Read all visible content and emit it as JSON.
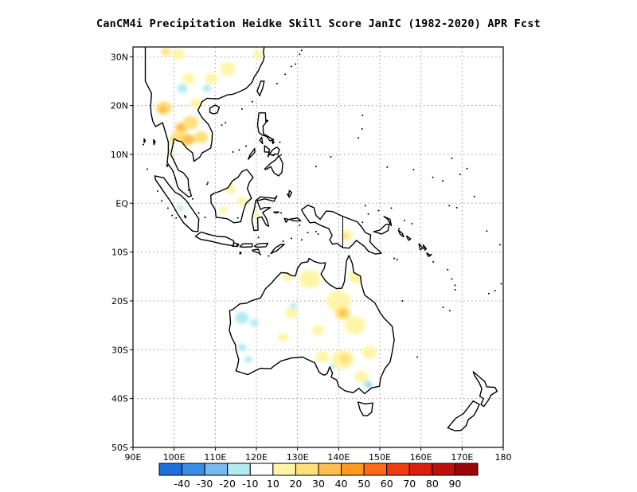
{
  "title": "CanCM4i  Precipitation Heidke Skill Score JanIC (1982-2020) APR Fcst",
  "map": {
    "lon_range": [
      90,
      180
    ],
    "lat_range": [
      -50,
      32
    ],
    "grid": "dotted",
    "x_ticks": [
      {
        "value": 90,
        "label": "90E"
      },
      {
        "value": 100,
        "label": "100E"
      },
      {
        "value": 110,
        "label": "110E"
      },
      {
        "value": 120,
        "label": "120E"
      },
      {
        "value": 130,
        "label": "130E"
      },
      {
        "value": 140,
        "label": "140E"
      },
      {
        "value": 150,
        "label": "150E"
      },
      {
        "value": 160,
        "label": "160E"
      },
      {
        "value": 170,
        "label": "170E"
      },
      {
        "value": 180,
        "label": "180"
      }
    ],
    "y_ticks": [
      {
        "value": 30,
        "label": "30N"
      },
      {
        "value": 20,
        "label": "20N"
      },
      {
        "value": 10,
        "label": "10N"
      },
      {
        "value": 0,
        "label": "EQ"
      },
      {
        "value": -10,
        "label": "10S"
      },
      {
        "value": -20,
        "label": "20S"
      },
      {
        "value": -30,
        "label": "30S"
      },
      {
        "value": -40,
        "label": "40S"
      },
      {
        "value": -50,
        "label": "50S"
      }
    ]
  },
  "colorbar": {
    "colors": [
      "#1e6fdc",
      "#3a8de6",
      "#78b9f0",
      "#b4ebf0",
      "#ffffff",
      "#fff5a8",
      "#ffe07a",
      "#ffbe50",
      "#ff9a1e",
      "#ff6a14",
      "#f03a10",
      "#dc1e10",
      "#be0f0c",
      "#9a0606"
    ],
    "labels": [
      "-40",
      "-30",
      "-20",
      "-10",
      "10",
      "20",
      "30",
      "40",
      "50",
      "60",
      "70",
      "80",
      "90"
    ]
  },
  "shading": [
    {
      "level": 40,
      "color": "#ffbe50",
      "lon": 101.7,
      "lat": 15.5,
      "r": 1.3
    },
    {
      "level": 30,
      "color": "#ffe07a",
      "lon": 97.5,
      "lat": 19.5,
      "r": 1.8
    },
    {
      "level": 40,
      "color": "#ffbe50",
      "lon": 97.2,
      "lat": 19.2,
      "r": 1.0
    },
    {
      "level": 30,
      "color": "#ffe07a",
      "lon": 101.5,
      "lat": 13.0,
      "r": 2.4
    },
    {
      "level": 40,
      "color": "#ffbe50",
      "lon": 103.5,
      "lat": 13.0,
      "r": 1.4
    },
    {
      "level": 30,
      "color": "#ffe07a",
      "lon": 104.0,
      "lat": 16.5,
      "r": 1.8
    },
    {
      "level": 30,
      "color": "#ffe07a",
      "lon": 106.5,
      "lat": 13.5,
      "r": 1.6
    },
    {
      "level": 20,
      "color": "#fff5a8",
      "lon": 99.5,
      "lat": 10.5,
      "r": 1.2
    },
    {
      "level": 20,
      "color": "#fff5a8",
      "lon": 105.5,
      "lat": 20.5,
      "r": 1.4
    },
    {
      "level": 20,
      "color": "#fff5a8",
      "lon": 103.5,
      "lat": 25.5,
      "r": 1.5
    },
    {
      "level": 20,
      "color": "#fff5a8",
      "lon": 109.0,
      "lat": 25.5,
      "r": 1.5
    },
    {
      "level": 20,
      "color": "#fff5a8",
      "lon": 113.0,
      "lat": 27.5,
      "r": 1.8
    },
    {
      "level": 20,
      "color": "#fff5a8",
      "lon": 101.0,
      "lat": 30.5,
      "r": 1.5
    },
    {
      "level": 30,
      "color": "#ffe07a",
      "lon": 98.0,
      "lat": 31.0,
      "r": 1.0
    },
    {
      "level": 20,
      "color": "#fff5a8",
      "lon": 120.5,
      "lat": 30.5,
      "r": 1.2
    },
    {
      "level": 20,
      "color": "#fff5a8",
      "lon": 124.0,
      "lat": 17.5,
      "r": 1.0
    },
    {
      "level": -10,
      "color": "#b4ebf0",
      "lon": 102.0,
      "lat": 23.5,
      "r": 1.2
    },
    {
      "level": -10,
      "color": "#b4ebf0",
      "lon": 108.0,
      "lat": 23.5,
      "r": 1.0
    },
    {
      "level": 20,
      "color": "#fff5a8",
      "lon": 113.5,
      "lat": 3.0,
      "r": 1.4
    },
    {
      "level": 20,
      "color": "#fff5a8",
      "lon": 116.5,
      "lat": 0.5,
      "r": 1.2
    },
    {
      "level": 20,
      "color": "#fff5a8",
      "lon": 112.0,
      "lat": -1.5,
      "r": 1.0
    },
    {
      "level": 20,
      "color": "#fff5a8",
      "lon": 120.0,
      "lat": -2.5,
      "r": 0.9
    },
    {
      "level": 20,
      "color": "#fff5a8",
      "lon": 142.0,
      "lat": -6.5,
      "r": 1.4
    },
    {
      "level": 30,
      "color": "#ffe07a",
      "lon": 141.5,
      "lat": -6.8,
      "r": 0.8
    },
    {
      "level": -10,
      "color": "#b4ebf0",
      "lon": 101.5,
      "lat": -1.0,
      "r": 0.8
    },
    {
      "level": 20,
      "color": "#fff5a8",
      "lon": 133.0,
      "lat": -15.5,
      "r": 2.5
    },
    {
      "level": 20,
      "color": "#fff5a8",
      "lon": 127.5,
      "lat": -15.0,
      "r": 1.2
    },
    {
      "level": 20,
      "color": "#fff5a8",
      "lon": 144.5,
      "lat": -15.0,
      "r": 2.0
    },
    {
      "level": 20,
      "color": "#fff5a8",
      "lon": 140.0,
      "lat": -20.0,
      "r": 2.8
    },
    {
      "level": 30,
      "color": "#ffe07a",
      "lon": 141.0,
      "lat": -22.5,
      "r": 1.8
    },
    {
      "level": 40,
      "color": "#ffbe50",
      "lon": 141.0,
      "lat": -22.5,
      "r": 0.9
    },
    {
      "level": 20,
      "color": "#fff5a8",
      "lon": 144.0,
      "lat": -25.0,
      "r": 2.4
    },
    {
      "level": 20,
      "color": "#fff5a8",
      "lon": 128.5,
      "lat": -22.5,
      "r": 1.5
    },
    {
      "level": 20,
      "color": "#fff5a8",
      "lon": 126.5,
      "lat": -27.5,
      "r": 1.2
    },
    {
      "level": 20,
      "color": "#fff5a8",
      "lon": 135.0,
      "lat": -26.0,
      "r": 1.4
    },
    {
      "level": 20,
      "color": "#fff5a8",
      "lon": 136.0,
      "lat": -31.5,
      "r": 1.6
    },
    {
      "level": 20,
      "color": "#fff5a8",
      "lon": 141.0,
      "lat": -32.0,
      "r": 2.6
    },
    {
      "level": 30,
      "color": "#ffe07a",
      "lon": 141.5,
      "lat": -31.8,
      "r": 1.3
    },
    {
      "level": 20,
      "color": "#fff5a8",
      "lon": 147.5,
      "lat": -30.5,
      "r": 1.8
    },
    {
      "level": 20,
      "color": "#fff5a8",
      "lon": 145.5,
      "lat": -35.5,
      "r": 1.6
    },
    {
      "level": 20,
      "color": "#fff5a8",
      "lon": 129.5,
      "lat": -32.5,
      "r": 1.0
    },
    {
      "level": -10,
      "color": "#b4ebf0",
      "lon": 116.5,
      "lat": -23.5,
      "r": 1.6
    },
    {
      "level": -10,
      "color": "#b4ebf0",
      "lon": 119.5,
      "lat": -24.5,
      "r": 1.0
    },
    {
      "level": -10,
      "color": "#b4ebf0",
      "lon": 116.5,
      "lat": -29.5,
      "r": 1.0
    },
    {
      "level": -10,
      "color": "#b4ebf0",
      "lon": 118.0,
      "lat": -32.0,
      "r": 0.9
    },
    {
      "level": -10,
      "color": "#b4ebf0",
      "lon": 126.0,
      "lat": -33.0,
      "r": 0.8
    },
    {
      "level": -10,
      "color": "#b4ebf0",
      "lon": 129.0,
      "lat": -21.0,
      "r": 0.8
    },
    {
      "level": -10,
      "color": "#b4ebf0",
      "lon": 147.0,
      "lat": -37.0,
      "r": 1.0
    },
    {
      "level": -20,
      "color": "#78b9f0",
      "lon": 147.5,
      "lat": -37.3,
      "r": 0.5
    },
    {
      "level": -10,
      "color": "#b4ebf0",
      "lon": 138.5,
      "lat": -33.5,
      "r": 0.7
    }
  ]
}
